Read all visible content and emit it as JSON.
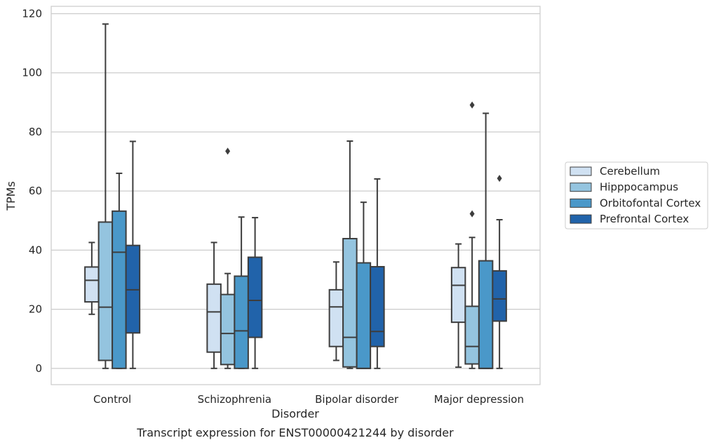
{
  "caption": "Transcript expression for ENST00000421244 by disorder",
  "chart_data": {
    "type": "box",
    "xlabel": "Disorder",
    "ylabel": "TPMs",
    "ylim": [
      -5.5,
      122.5
    ],
    "yticks": [
      0,
      20,
      40,
      60,
      80,
      100,
      120
    ],
    "grid": "horizontal",
    "legend_position": "right",
    "categories": [
      "Control",
      "Schizophrenia",
      "Bipolar disorder",
      "Major depression"
    ],
    "series": [
      {
        "name": "Cerebellum",
        "color": "#d0e1f2",
        "boxes": [
          {
            "whisker_low": 18.3,
            "q1": 22.5,
            "median": 29.8,
            "q3": 34.3,
            "whisker_high": 42.6,
            "outliers": []
          },
          {
            "whisker_low": 0,
            "q1": 5.5,
            "median": 19.1,
            "q3": 28.5,
            "whisker_high": 42.6,
            "outliers": []
          },
          {
            "whisker_low": 2.7,
            "q1": 7.4,
            "median": 20.8,
            "q3": 26.6,
            "whisker_high": 36.0,
            "outliers": []
          },
          {
            "whisker_low": 0.4,
            "q1": 15.6,
            "median": 28.1,
            "q3": 34.1,
            "whisker_high": 42.1,
            "outliers": []
          }
        ]
      },
      {
        "name": "Hipppocampus",
        "color": "#94c4df",
        "boxes": [
          {
            "whisker_low": 0,
            "q1": 2.7,
            "median": 20.7,
            "q3": 49.5,
            "whisker_high": 116.5,
            "outliers": []
          },
          {
            "whisker_low": 0,
            "q1": 1.3,
            "median": 11.8,
            "q3": 25.0,
            "whisker_high": 32.1,
            "outliers": [
              73.5
            ]
          },
          {
            "whisker_low": 0,
            "q1": 0.5,
            "median": 10.5,
            "q3": 43.9,
            "whisker_high": 76.9,
            "outliers": []
          },
          {
            "whisker_low": 0,
            "q1": 1.5,
            "median": 7.4,
            "q3": 21.0,
            "whisker_high": 44.3,
            "outliers": [
              52.3,
              89.1
            ]
          }
        ]
      },
      {
        "name": "Orbitofontal Cortex",
        "color": "#4a98c9",
        "boxes": [
          {
            "whisker_low": 0,
            "q1": 0,
            "median": 39.3,
            "q3": 53.2,
            "whisker_high": 66.0,
            "outliers": []
          },
          {
            "whisker_low": 0,
            "q1": 0,
            "median": 12.7,
            "q3": 31.2,
            "whisker_high": 51.2,
            "outliers": []
          },
          {
            "whisker_low": 0,
            "q1": 0,
            "median": 0,
            "q3": 35.7,
            "whisker_high": 56.2,
            "outliers": []
          },
          {
            "whisker_low": 0,
            "q1": 0,
            "median": 0,
            "q3": 36.4,
            "whisker_high": 86.3,
            "outliers": []
          }
        ]
      },
      {
        "name": "Prefrontal Cortex",
        "color": "#2163aa",
        "boxes": [
          {
            "whisker_low": 0,
            "q1": 12.0,
            "median": 26.6,
            "q3": 41.6,
            "whisker_high": 76.8,
            "outliers": []
          },
          {
            "whisker_low": 0,
            "q1": 10.5,
            "median": 23.0,
            "q3": 37.6,
            "whisker_high": 51.0,
            "outliers": []
          },
          {
            "whisker_low": 0,
            "q1": 7.4,
            "median": 12.5,
            "q3": 34.4,
            "whisker_high": 64.1,
            "outliers": []
          },
          {
            "whisker_low": 0,
            "q1": 16.0,
            "median": 23.5,
            "q3": 33.0,
            "whisker_high": 50.3,
            "outliers": [
              64.3
            ]
          }
        ]
      }
    ]
  }
}
